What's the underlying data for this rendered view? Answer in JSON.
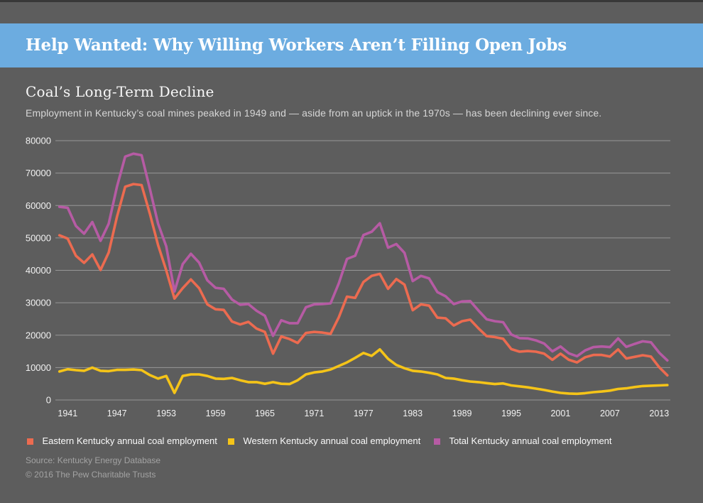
{
  "header": {
    "title": "Help Wanted: Why Willing Workers Aren’t Filling Open Jobs"
  },
  "chart_data": {
    "type": "line",
    "title": "Coal’s Long-Term Decline",
    "subtitle": "Employment in Kentucky’s coal mines peaked in 1949 and — aside from an uptick in the 1970s — has been declining ever since.",
    "xlabel": "",
    "ylabel": "",
    "ylim": [
      0,
      80000
    ],
    "y_ticks": [
      80000,
      70000,
      60000,
      50000,
      40000,
      30000,
      20000,
      10000,
      0
    ],
    "x_tick_labels": [
      1941,
      1947,
      1953,
      1959,
      1965,
      1971,
      1977,
      1983,
      1989,
      1995,
      2001,
      2007,
      2013
    ],
    "grid": "horizontal",
    "legend_position": "bottom",
    "background_color": "#5d5d5d",
    "banner_color": "#6cace0",
    "gridline_color": "#979797",
    "x": [
      1940,
      1941,
      1942,
      1943,
      1944,
      1945,
      1946,
      1947,
      1948,
      1949,
      1950,
      1951,
      1952,
      1953,
      1954,
      1955,
      1956,
      1957,
      1958,
      1959,
      1960,
      1961,
      1962,
      1963,
      1964,
      1965,
      1966,
      1967,
      1968,
      1969,
      1970,
      1971,
      1972,
      1973,
      1974,
      1975,
      1976,
      1977,
      1978,
      1979,
      1980,
      1981,
      1982,
      1983,
      1984,
      1985,
      1986,
      1987,
      1988,
      1989,
      1990,
      1991,
      1992,
      1993,
      1994,
      1995,
      1996,
      1997,
      1998,
      1999,
      2000,
      2001,
      2002,
      2003,
      2004,
      2005,
      2006,
      2007,
      2008,
      2009,
      2010,
      2011,
      2012,
      2013,
      2014
    ],
    "series": [
      {
        "id": "eastern",
        "name": "Eastern Kentucky annual coal employment",
        "color": "#ec6b50",
        "values": [
          50800,
          49800,
          44500,
          42300,
          44900,
          40100,
          45500,
          56500,
          65800,
          66600,
          66300,
          57500,
          47800,
          40000,
          31300,
          34500,
          37200,
          34500,
          29500,
          28000,
          27800,
          24200,
          23300,
          24100,
          22000,
          21000,
          14300,
          19600,
          18800,
          17600,
          20700,
          21000,
          20800,
          20400,
          25500,
          31900,
          31500,
          36400,
          38300,
          38900,
          34300,
          37300,
          35600,
          27700,
          29500,
          29100,
          25400,
          25200,
          23000,
          24300,
          24800,
          22100,
          19700,
          19400,
          18900,
          15700,
          14900,
          15100,
          14900,
          14300,
          12400,
          14300,
          12400,
          11600,
          13200,
          13900,
          13900,
          13400,
          15600,
          12800,
          13300,
          13800,
          13400,
          10100,
          7600
        ]
      },
      {
        "id": "western",
        "name": "Western Kentucky annual coal employment",
        "color": "#f5c418",
        "values": [
          8800,
          9500,
          9200,
          9000,
          10000,
          9000,
          8900,
          9300,
          9300,
          9400,
          9200,
          7700,
          6600,
          7400,
          2200,
          7400,
          7900,
          7900,
          7400,
          6600,
          6500,
          6800,
          6100,
          5500,
          5500,
          5000,
          5500,
          5000,
          4900,
          6100,
          7900,
          8500,
          8800,
          9400,
          10500,
          11600,
          13000,
          14500,
          13600,
          15600,
          12700,
          10800,
          9800,
          9000,
          8800,
          8400,
          7900,
          6800,
          6600,
          6100,
          5700,
          5500,
          5200,
          4900,
          5100,
          4500,
          4200,
          3900,
          3500,
          3100,
          2600,
          2200,
          2000,
          1900,
          2100,
          2400,
          2600,
          2900,
          3400,
          3600,
          4000,
          4300,
          4400,
          4500,
          4600
        ]
      },
      {
        "id": "total",
        "name": "Total Kentucky annual coal employment",
        "color": "#b65ba4",
        "values": [
          59600,
          59300,
          53700,
          51300,
          54900,
          49100,
          54400,
          65800,
          75100,
          76000,
          75500,
          65200,
          54400,
          47400,
          33500,
          41900,
          45100,
          42400,
          36900,
          34600,
          34300,
          31000,
          29400,
          29600,
          27500,
          26000,
          19800,
          24600,
          23700,
          23700,
          28600,
          29500,
          29600,
          29800,
          36000,
          43500,
          44500,
          50900,
          51900,
          54500,
          47000,
          48100,
          45400,
          36700,
          38300,
          37500,
          33300,
          32000,
          29600,
          30400,
          30500,
          27600,
          24900,
          24300,
          24000,
          20200,
          19100,
          19000,
          18400,
          17400,
          15000,
          16500,
          14400,
          13500,
          15300,
          16300,
          16500,
          16300,
          19000,
          16400,
          17300,
          18100,
          17800,
          14600,
          12200
        ]
      }
    ]
  },
  "footer": {
    "source": "Source: Kentucky Energy Database",
    "copyright": "© 2016 The Pew Charitable Trusts"
  }
}
